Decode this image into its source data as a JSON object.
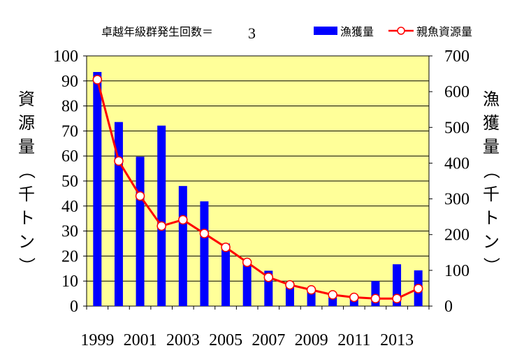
{
  "annotation": {
    "label": "卓越年級群発生回数＝",
    "value": "3"
  },
  "chart_data": {
    "type": "bar+line",
    "categories": [
      "1999",
      "2000",
      "2001",
      "2002",
      "2003",
      "2004",
      "2005",
      "2006",
      "2007",
      "2008",
      "2009",
      "2010",
      "2011",
      "2012",
      "2013",
      "2014"
    ],
    "x_tick_labels": [
      "1999",
      "2001",
      "2003",
      "2005",
      "2007",
      "2009",
      "2011",
      "2013"
    ],
    "series": [
      {
        "name": "漁獲量",
        "type": "bar",
        "axis": "right",
        "values": [
          655,
          515,
          418,
          505,
          336,
          293,
          175,
          118,
          99,
          59,
          41,
          24,
          31,
          70,
          117,
          100
        ]
      },
      {
        "name": "親魚資源量",
        "type": "line",
        "axis": "left",
        "values": [
          90.5,
          58,
          44,
          32,
          34.5,
          29,
          23.5,
          17.5,
          11.5,
          8.5,
          6.5,
          4.5,
          3.5,
          3,
          3,
          7
        ]
      }
    ],
    "y_left": {
      "label": "資源量（千トン）",
      "ylim": [
        0,
        100
      ],
      "ticks": [
        0,
        10,
        20,
        30,
        40,
        50,
        60,
        70,
        80,
        90,
        100
      ]
    },
    "y_right": {
      "label": "漁獲量（千トン）",
      "ylim": [
        0,
        700
      ],
      "ticks": [
        0,
        100,
        200,
        300,
        400,
        500,
        600,
        700
      ]
    },
    "colors": {
      "bar": "#0000ff",
      "line": "#ff0000",
      "marker_fill": "#ffffff",
      "plot_bg": "#ffff99",
      "grid": "#000000"
    },
    "grid": true,
    "legend_position": "top-right"
  }
}
